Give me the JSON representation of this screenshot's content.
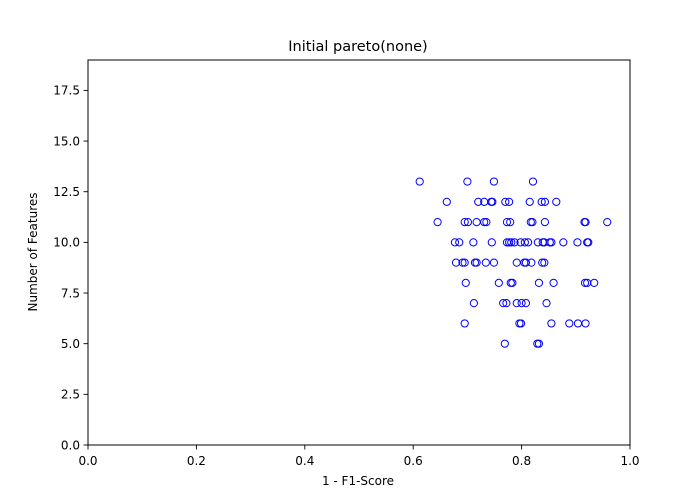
{
  "chart_data": {
    "type": "scatter",
    "title": "Initial pareto(none)",
    "xlabel": "1 - F1-Score",
    "ylabel": "Number of Features",
    "xlim": [
      0.0,
      1.0
    ],
    "ylim": [
      0.0,
      19.0
    ],
    "xticks": [
      0.0,
      0.2,
      0.4,
      0.6,
      0.8,
      1.0
    ],
    "xtick_labels": [
      "0.0",
      "0.2",
      "0.4",
      "0.6",
      "0.8",
      "1.0"
    ],
    "yticks": [
      0.0,
      2.5,
      5.0,
      7.5,
      10.0,
      12.5,
      15.0,
      17.5
    ],
    "ytick_labels": [
      "0.0",
      "2.5",
      "5.0",
      "7.5",
      "10.0",
      "12.5",
      "15.0",
      "17.5"
    ],
    "grid": false,
    "marker": "hollow-circle",
    "marker_color": "#0000ff",
    "series": [
      {
        "name": "",
        "points": [
          {
            "x": 0.612,
            "y": 13
          },
          {
            "x": 0.7,
            "y": 13
          },
          {
            "x": 0.749,
            "y": 13
          },
          {
            "x": 0.821,
            "y": 13
          },
          {
            "x": 0.662,
            "y": 12
          },
          {
            "x": 0.72,
            "y": 12
          },
          {
            "x": 0.731,
            "y": 12
          },
          {
            "x": 0.744,
            "y": 12
          },
          {
            "x": 0.746,
            "y": 12
          },
          {
            "x": 0.77,
            "y": 12
          },
          {
            "x": 0.777,
            "y": 12
          },
          {
            "x": 0.815,
            "y": 12
          },
          {
            "x": 0.837,
            "y": 12
          },
          {
            "x": 0.843,
            "y": 12
          },
          {
            "x": 0.864,
            "y": 12
          },
          {
            "x": 0.645,
            "y": 11
          },
          {
            "x": 0.695,
            "y": 11
          },
          {
            "x": 0.701,
            "y": 11
          },
          {
            "x": 0.717,
            "y": 11
          },
          {
            "x": 0.731,
            "y": 11
          },
          {
            "x": 0.735,
            "y": 11
          },
          {
            "x": 0.773,
            "y": 11
          },
          {
            "x": 0.779,
            "y": 11
          },
          {
            "x": 0.817,
            "y": 11
          },
          {
            "x": 0.82,
            "y": 11
          },
          {
            "x": 0.843,
            "y": 11
          },
          {
            "x": 0.916,
            "y": 11
          },
          {
            "x": 0.918,
            "y": 11
          },
          {
            "x": 0.958,
            "y": 11
          },
          {
            "x": 0.677,
            "y": 10
          },
          {
            "x": 0.685,
            "y": 10
          },
          {
            "x": 0.711,
            "y": 10
          },
          {
            "x": 0.745,
            "y": 10
          },
          {
            "x": 0.773,
            "y": 10
          },
          {
            "x": 0.777,
            "y": 10
          },
          {
            "x": 0.781,
            "y": 10
          },
          {
            "x": 0.787,
            "y": 10
          },
          {
            "x": 0.798,
            "y": 10
          },
          {
            "x": 0.806,
            "y": 10
          },
          {
            "x": 0.812,
            "y": 10
          },
          {
            "x": 0.83,
            "y": 10
          },
          {
            "x": 0.839,
            "y": 10
          },
          {
            "x": 0.842,
            "y": 10
          },
          {
            "x": 0.852,
            "y": 10
          },
          {
            "x": 0.855,
            "y": 10
          },
          {
            "x": 0.877,
            "y": 10
          },
          {
            "x": 0.903,
            "y": 10
          },
          {
            "x": 0.921,
            "y": 10
          },
          {
            "x": 0.923,
            "y": 10
          },
          {
            "x": 0.679,
            "y": 9
          },
          {
            "x": 0.691,
            "y": 9
          },
          {
            "x": 0.695,
            "y": 9
          },
          {
            "x": 0.714,
            "y": 9
          },
          {
            "x": 0.717,
            "y": 9
          },
          {
            "x": 0.734,
            "y": 9
          },
          {
            "x": 0.749,
            "y": 9
          },
          {
            "x": 0.791,
            "y": 9
          },
          {
            "x": 0.805,
            "y": 9
          },
          {
            "x": 0.808,
            "y": 9
          },
          {
            "x": 0.818,
            "y": 9
          },
          {
            "x": 0.838,
            "y": 9
          },
          {
            "x": 0.842,
            "y": 9
          },
          {
            "x": 0.697,
            "y": 8
          },
          {
            "x": 0.758,
            "y": 8
          },
          {
            "x": 0.78,
            "y": 8
          },
          {
            "x": 0.783,
            "y": 8
          },
          {
            "x": 0.832,
            "y": 8
          },
          {
            "x": 0.859,
            "y": 8
          },
          {
            "x": 0.917,
            "y": 8
          },
          {
            "x": 0.921,
            "y": 8
          },
          {
            "x": 0.934,
            "y": 8
          },
          {
            "x": 0.712,
            "y": 7
          },
          {
            "x": 0.766,
            "y": 7
          },
          {
            "x": 0.772,
            "y": 7
          },
          {
            "x": 0.791,
            "y": 7
          },
          {
            "x": 0.8,
            "y": 7
          },
          {
            "x": 0.808,
            "y": 7
          },
          {
            "x": 0.846,
            "y": 7
          },
          {
            "x": 0.695,
            "y": 6
          },
          {
            "x": 0.796,
            "y": 6
          },
          {
            "x": 0.799,
            "y": 6
          },
          {
            "x": 0.855,
            "y": 6
          },
          {
            "x": 0.888,
            "y": 6
          },
          {
            "x": 0.904,
            "y": 6
          },
          {
            "x": 0.918,
            "y": 6
          },
          {
            "x": 0.769,
            "y": 5
          },
          {
            "x": 0.829,
            "y": 5
          },
          {
            "x": 0.832,
            "y": 5
          }
        ]
      }
    ]
  }
}
